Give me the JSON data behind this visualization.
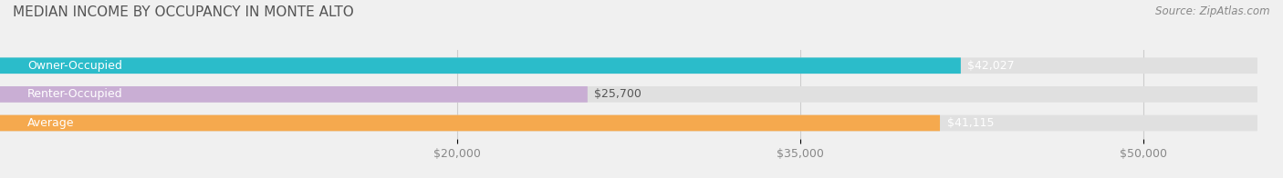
{
  "title": "MEDIAN INCOME BY OCCUPANCY IN MONTE ALTO",
  "source": "Source: ZipAtlas.com",
  "categories": [
    "Owner-Occupied",
    "Renter-Occupied",
    "Average"
  ],
  "values": [
    42027,
    25700,
    41115
  ],
  "labels": [
    "$42,027",
    "$25,700",
    "$41,115"
  ],
  "bar_colors": [
    "#2bbcca",
    "#c9aed4",
    "#f5a94e"
  ],
  "background_color": "#f0f0f0",
  "bar_bg_color": "#e0e0e0",
  "xlim": [
    0,
    55000
  ],
  "xticks": [
    20000,
    35000,
    50000
  ],
  "xticklabels": [
    "$20,000",
    "$35,000",
    "$50,000"
  ],
  "bar_height": 0.55,
  "title_fontsize": 11,
  "source_fontsize": 8.5,
  "label_fontsize": 9,
  "cat_fontsize": 9,
  "tick_fontsize": 9
}
